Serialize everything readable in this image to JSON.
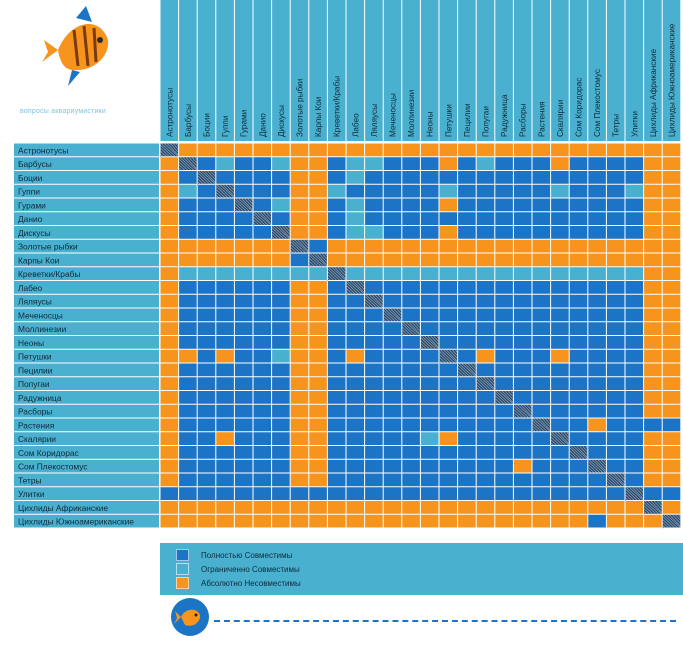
{
  "chart_data": {
    "type": "heatmap",
    "subtitle": "вопросы аквариумистики",
    "species": [
      "Астронотусы",
      "Барбусы",
      "Боции",
      "Гуппи",
      "Гурами",
      "Данио",
      "Дискусы",
      "Золотые рыбки",
      "Карпы Кои",
      "Креветки/Крабы",
      "Лабео",
      "Ляляусы",
      "Меченосцы",
      "Моллинезии",
      "Неоны",
      "Петушки",
      "Пецилии",
      "Попугаи",
      "Радужница",
      "Расборы",
      "Растения",
      "Скалярии",
      "Сом Коридорас",
      "Сом Плекостомус",
      "Тетры",
      "Улитки",
      "Цихлиды Африканские",
      "Цихлиды Южноамериканские"
    ],
    "legend": [
      {
        "code": "F",
        "label": "Полностью Совместимы",
        "color": "#1b74c5"
      },
      {
        "code": "L",
        "label": "Ограниченно Совместимы",
        "color": "#4ab0cf"
      },
      {
        "code": "I",
        "label": "Абсолютно Несовместимы",
        "color": "#f7941d"
      }
    ],
    "self_color": "#2b4a6a",
    "matrix": [
      "XIIIIIIIIIIIIIIIIIIIIIIIIIII",
      "IXFLFFLIIFLLFFFIFLFFFIFFFFII",
      "IFXFFFFIIFLFFFFFFFFFFFFFFFII",
      "ILFXFFFIILFFFFFLFFFFFLFFFLII",
      "IFFFXFLIIFLFFFFIFFFFFFFFFFII",
      "IFFFFXFIIFLFFFFFFFFFFFFFFFII",
      "IFFFFFXIIFLLFFFIFFFFFFFFFFII",
      "IIIIIIIXFIIIIIIIIIIIIIIIIIII",
      "IIIIIIIFXIIIIIIIIIIIIIIIIIII",
      "ILLLLLLLLXLLLLLLLLLLLLLLLLII",
      "IFFFFFFIIFXFFFFFFFFFFFFFFFII",
      "IFFFFFFIIFFXFFFFFFFFFFFFFFII",
      "IFFFFFFIIFFFXFFFFFFFFFFFFFII",
      "IFFFFFFIIFFFFXFFFFFFFFFFFFII",
      "IFFFFFFIIFFFFFXFFFFFFFFFFFII",
      "IIFIFFLIIFIFFFFXFIFFFIFFFFII",
      "IFFFFFFIIFFFFFFFXFFFFFFFFFII",
      "IFFFFFFIIFFFFFFFFXFFFFFFFFII",
      "IFFFFFFIIFFFFFFFFFXFFFFFFFII",
      "IFFFFFFIIFFFFFFFFFFXFFFFFFII",
      "IFFFFFFIIFFFFFFFFFFFXFFIFFFF",
      "IFFIFFFIIFFFFFLIFFFFFXFFFFII",
      "IFFFFFFIIFFFFFFFFFFFFFXFFFII",
      "IFFFFFFIIFFFFFFFFFFIFFFXFFII",
      "IFFFFFFIIFFFFFFFFFFFFFFFXFII",
      "FFFFFFFFFFFFFFFFFFFFFFFFFXFF",
      "IIIIIIIIIIIIIIIIIIIIIIIIIIXI",
      "IIIIIIIIIIIIIIIIIIIIIIIFIIIX"
    ]
  }
}
